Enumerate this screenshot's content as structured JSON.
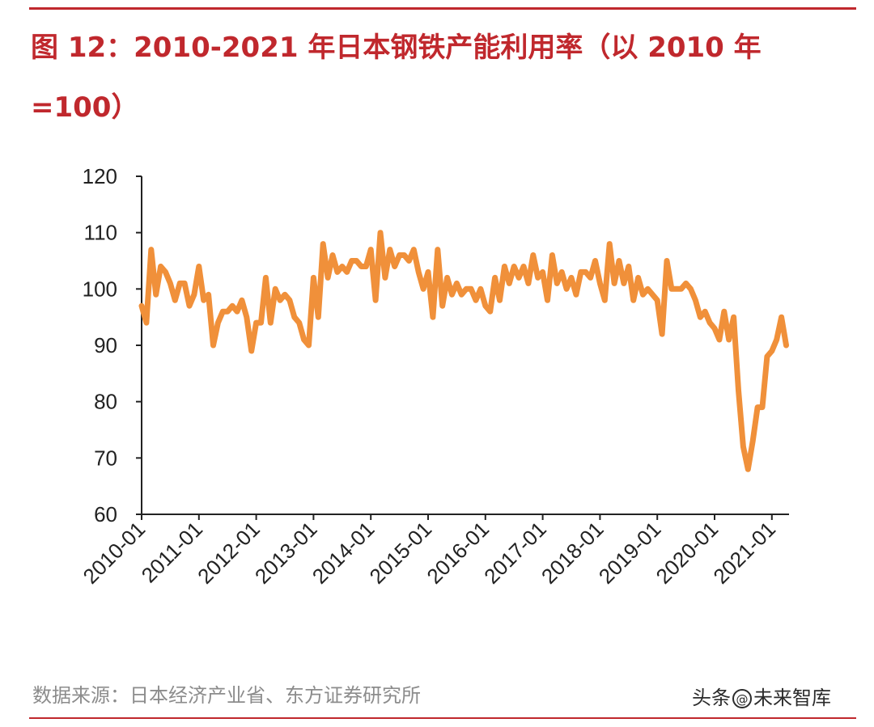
{
  "title": "图 12：2010-2021 年日本钢铁产能利用率（以 2010 年=100）",
  "source": "数据来源：日本经济产业省、东方证券研究所",
  "watermark": {
    "prefix": "头条",
    "at": "@",
    "name": "未来智库"
  },
  "colors": {
    "accent": "#c0282d",
    "series": "#f0903a",
    "axis": "#222222",
    "source_text": "#8c8c8c"
  },
  "chart_data": {
    "type": "line",
    "title": "",
    "xlabel": "",
    "ylabel": "",
    "ylim": [
      60,
      120
    ],
    "yticks": [
      60,
      70,
      80,
      90,
      100,
      110,
      120
    ],
    "xlim": [
      "2010-01",
      "2021-03"
    ],
    "xticks": [
      "2010-01",
      "2011-01",
      "2012-01",
      "2013-01",
      "2014-01",
      "2015-01",
      "2016-01",
      "2017-01",
      "2018-01",
      "2019-01",
      "2020-01",
      "2021-01"
    ],
    "grid": false,
    "legend": "none",
    "series": [
      {
        "name": "",
        "points": [
          [
            "2010-01",
            97
          ],
          [
            "2010-02",
            94
          ],
          [
            "2010-03",
            107
          ],
          [
            "2010-04",
            99
          ],
          [
            "2010-05",
            104
          ],
          [
            "2010-06",
            103
          ],
          [
            "2010-07",
            101
          ],
          [
            "2010-08",
            98
          ],
          [
            "2010-09",
            101
          ],
          [
            "2010-10",
            101
          ],
          [
            "2010-11",
            97
          ],
          [
            "2010-12",
            99
          ],
          [
            "2011-01",
            104
          ],
          [
            "2011-02",
            98
          ],
          [
            "2011-03",
            99
          ],
          [
            "2011-04",
            90
          ],
          [
            "2011-05",
            94
          ],
          [
            "2011-06",
            96
          ],
          [
            "2011-07",
            96
          ],
          [
            "2011-08",
            97
          ],
          [
            "2011-09",
            96
          ],
          [
            "2011-10",
            98
          ],
          [
            "2011-11",
            95
          ],
          [
            "2011-12",
            89
          ],
          [
            "2012-01",
            94
          ],
          [
            "2012-02",
            94
          ],
          [
            "2012-03",
            102
          ],
          [
            "2012-04",
            94
          ],
          [
            "2012-05",
            100
          ],
          [
            "2012-06",
            98
          ],
          [
            "2012-07",
            99
          ],
          [
            "2012-08",
            98
          ],
          [
            "2012-09",
            95
          ],
          [
            "2012-10",
            94
          ],
          [
            "2012-11",
            91
          ],
          [
            "2012-12",
            90
          ],
          [
            "2013-01",
            102
          ],
          [
            "2013-02",
            95
          ],
          [
            "2013-03",
            108
          ],
          [
            "2013-04",
            102
          ],
          [
            "2013-05",
            106
          ],
          [
            "2013-06",
            103
          ],
          [
            "2013-07",
            104
          ],
          [
            "2013-08",
            103
          ],
          [
            "2013-09",
            105
          ],
          [
            "2013-10",
            105
          ],
          [
            "2013-11",
            104
          ],
          [
            "2013-12",
            104
          ],
          [
            "2014-01",
            107
          ],
          [
            "2014-02",
            98
          ],
          [
            "2014-03",
            110
          ],
          [
            "2014-04",
            102
          ],
          [
            "2014-05",
            107
          ],
          [
            "2014-06",
            104
          ],
          [
            "2014-07",
            106
          ],
          [
            "2014-08",
            106
          ],
          [
            "2014-09",
            105
          ],
          [
            "2014-10",
            107
          ],
          [
            "2014-11",
            103
          ],
          [
            "2014-12",
            100
          ],
          [
            "2015-01",
            103
          ],
          [
            "2015-02",
            95
          ],
          [
            "2015-03",
            107
          ],
          [
            "2015-04",
            97
          ],
          [
            "2015-05",
            102
          ],
          [
            "2015-06",
            99
          ],
          [
            "2015-07",
            101
          ],
          [
            "2015-08",
            99
          ],
          [
            "2015-09",
            100
          ],
          [
            "2015-10",
            100
          ],
          [
            "2015-11",
            98
          ],
          [
            "2015-12",
            100
          ],
          [
            "2016-01",
            97
          ],
          [
            "2016-02",
            96
          ],
          [
            "2016-03",
            102
          ],
          [
            "2016-04",
            98
          ],
          [
            "2016-05",
            104
          ],
          [
            "2016-06",
            101
          ],
          [
            "2016-07",
            104
          ],
          [
            "2016-08",
            102
          ],
          [
            "2016-09",
            104
          ],
          [
            "2016-10",
            101
          ],
          [
            "2016-11",
            106
          ],
          [
            "2016-12",
            102
          ],
          [
            "2017-01",
            103
          ],
          [
            "2017-02",
            98
          ],
          [
            "2017-03",
            106
          ],
          [
            "2017-04",
            101
          ],
          [
            "2017-05",
            103
          ],
          [
            "2017-06",
            100
          ],
          [
            "2017-07",
            102
          ],
          [
            "2017-08",
            99
          ],
          [
            "2017-09",
            103
          ],
          [
            "2017-10",
            103
          ],
          [
            "2017-11",
            102
          ],
          [
            "2017-12",
            105
          ],
          [
            "2018-01",
            101
          ],
          [
            "2018-02",
            98
          ],
          [
            "2018-03",
            108
          ],
          [
            "2018-04",
            101
          ],
          [
            "2018-05",
            105
          ],
          [
            "2018-06",
            101
          ],
          [
            "2018-07",
            104
          ],
          [
            "2018-08",
            98
          ],
          [
            "2018-09",
            102
          ],
          [
            "2018-10",
            99
          ],
          [
            "2018-11",
            100
          ],
          [
            "2018-12",
            99
          ],
          [
            "2019-01",
            98
          ],
          [
            "2019-02",
            92
          ],
          [
            "2019-03",
            105
          ],
          [
            "2019-04",
            100
          ],
          [
            "2019-05",
            100
          ],
          [
            "2019-06",
            100
          ],
          [
            "2019-07",
            101
          ],
          [
            "2019-08",
            100
          ],
          [
            "2019-09",
            98
          ],
          [
            "2019-10",
            95
          ],
          [
            "2019-11",
            96
          ],
          [
            "2019-12",
            94
          ],
          [
            "2020-01",
            93
          ],
          [
            "2020-02",
            91
          ],
          [
            "2020-03",
            96
          ],
          [
            "2020-04",
            91
          ],
          [
            "2020-05",
            95
          ],
          [
            "2020-06",
            82
          ],
          [
            "2020-07",
            72
          ],
          [
            "2020-08",
            68
          ],
          [
            "2020-09",
            73
          ],
          [
            "2020-10",
            79
          ],
          [
            "2020-11",
            79
          ],
          [
            "2020-12",
            88
          ],
          [
            "2021-01",
            89
          ],
          [
            "2021-02",
            91
          ],
          [
            "2021-03",
            95
          ],
          [
            "2021-04",
            90
          ]
        ]
      }
    ]
  }
}
